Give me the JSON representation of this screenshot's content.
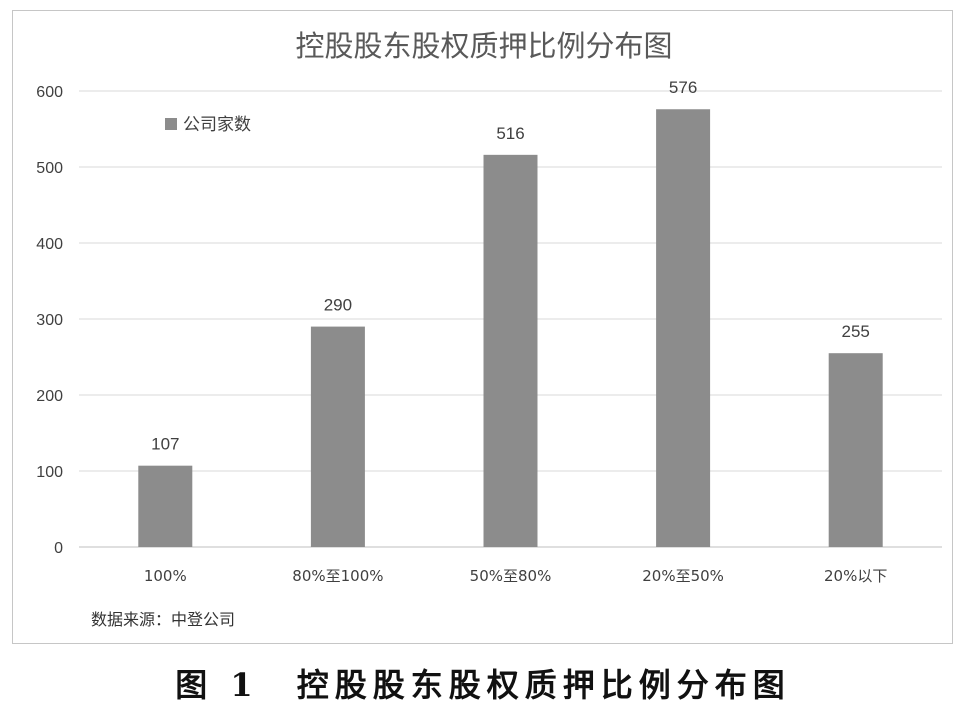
{
  "caption": "图 1　控股股东股权质押比例分布图",
  "chart_data": {
    "type": "bar",
    "title": "控股股东股权质押比例分布图",
    "categories": [
      "100%",
      "80%至100%",
      "50%至80%",
      "20%至50%",
      "20%以下"
    ],
    "series": [
      {
        "name": "公司家数",
        "values": [
          107,
          290,
          516,
          576,
          255
        ]
      }
    ],
    "data_labels": [
      "107",
      "290",
      "516",
      "576",
      "255"
    ],
    "ylim": [
      0,
      600
    ],
    "yticks": [
      "0",
      "100",
      "200",
      "300",
      "400",
      "500",
      "600"
    ],
    "grid": true,
    "legend_position": "top-left",
    "bar_color": "#8c8c8c",
    "source": "数据来源：中登公司"
  }
}
